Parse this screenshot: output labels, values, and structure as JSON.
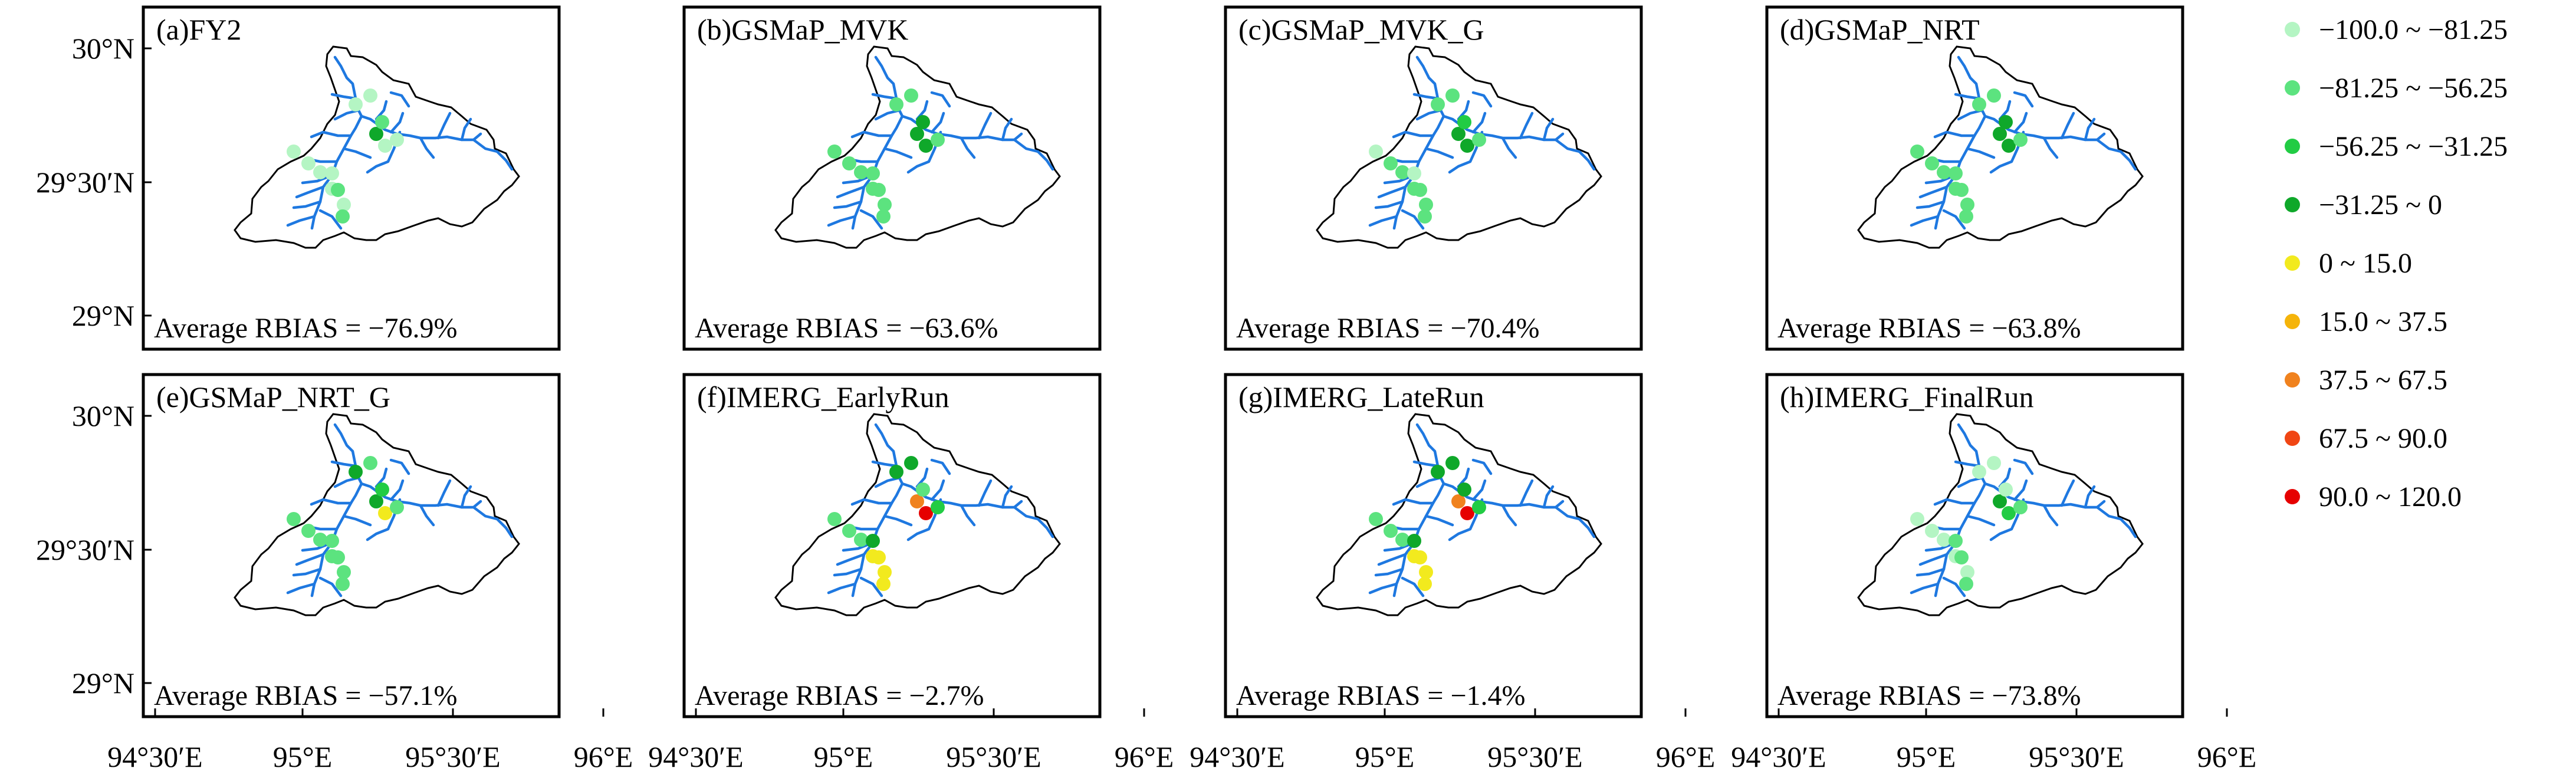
{
  "figure": {
    "panels": [
      {
        "id": "a",
        "title": "(a)FY2",
        "rbias": "Average RBIAS = −76.9%",
        "colors": [
          0,
          0,
          0,
          0,
          0,
          1,
          3,
          1,
          0,
          0,
          0,
          0,
          0,
          1
        ]
      },
      {
        "id": "b",
        "title": "(b)GSMaP_MVK",
        "rbias": "Average RBIAS = −63.6%",
        "colors": [
          1,
          1,
          1,
          1,
          1,
          1,
          3,
          3,
          3,
          1,
          1,
          1,
          1,
          1
        ]
      },
      {
        "id": "c",
        "title": "(c)GSMaP_MVK_G",
        "rbias": "Average RBIAS = −70.4%",
        "colors": [
          0,
          1,
          1,
          0,
          1,
          1,
          3,
          2,
          3,
          1,
          1,
          1,
          1,
          1
        ]
      },
      {
        "id": "d",
        "title": "(d)GSMaP_NRT",
        "rbias": "Average RBIAS = −63.8%",
        "colors": [
          1,
          1,
          1,
          1,
          1,
          1,
          3,
          3,
          3,
          1,
          1,
          1,
          1,
          1
        ]
      },
      {
        "id": "e",
        "title": "(e)GSMaP_NRT_G",
        "rbias": "Average RBIAS = −57.1%",
        "colors": [
          1,
          1,
          1,
          1,
          1,
          1,
          3,
          2,
          4,
          1,
          3,
          1,
          1,
          1
        ]
      },
      {
        "id": "f",
        "title": "(f)IMERG_EarlyRun",
        "rbias": "Average RBIAS = −2.7%",
        "colors": [
          1,
          1,
          1,
          3,
          4,
          4,
          6,
          1,
          8,
          2,
          3,
          3,
          4,
          4
        ]
      },
      {
        "id": "g",
        "title": "(g)IMERG_LateRun",
        "rbias": "Average RBIAS = −1.4%",
        "colors": [
          1,
          1,
          1,
          3,
          4,
          4,
          6,
          3,
          8,
          2,
          3,
          3,
          4,
          4
        ]
      },
      {
        "id": "h",
        "title": "(h)IMERG_FinalRun",
        "rbias": "Average RBIAS = −73.8%",
        "colors": [
          0,
          0,
          0,
          1,
          0,
          1,
          3,
          0,
          2,
          1,
          0,
          0,
          0,
          1
        ]
      }
    ],
    "y_ticks": [
      "30°N",
      "29°30′N",
      "29°N"
    ],
    "x_ticks": [
      "94°30′E",
      "95°E",
      "95°30′E",
      "96°E"
    ]
  },
  "legend": {
    "items": [
      {
        "label": "−100.0 ~ −81.25",
        "color": "#b4f5c3"
      },
      {
        "label": "−81.25 ~ −56.25",
        "color": "#5ce37f"
      },
      {
        "label": "−56.25 ~ −31.25",
        "color": "#22cc44"
      },
      {
        "label": "−31.25 ~ 0",
        "color": "#0fa82a"
      },
      {
        "label": "0 ~ 15.0",
        "color": "#f2ea1e"
      },
      {
        "label": "15.0 ~ 37.5",
        "color": "#f5b40a"
      },
      {
        "label": "37.5 ~ 67.5",
        "color": "#f0821e"
      },
      {
        "label": "67.5 ~ 90.0",
        "color": "#f04614"
      },
      {
        "label": "90.0 ~ 120.0",
        "color": "#e60000"
      }
    ]
  },
  "style": {
    "river_color": "#1e78e0",
    "outline_color": "#000000"
  }
}
